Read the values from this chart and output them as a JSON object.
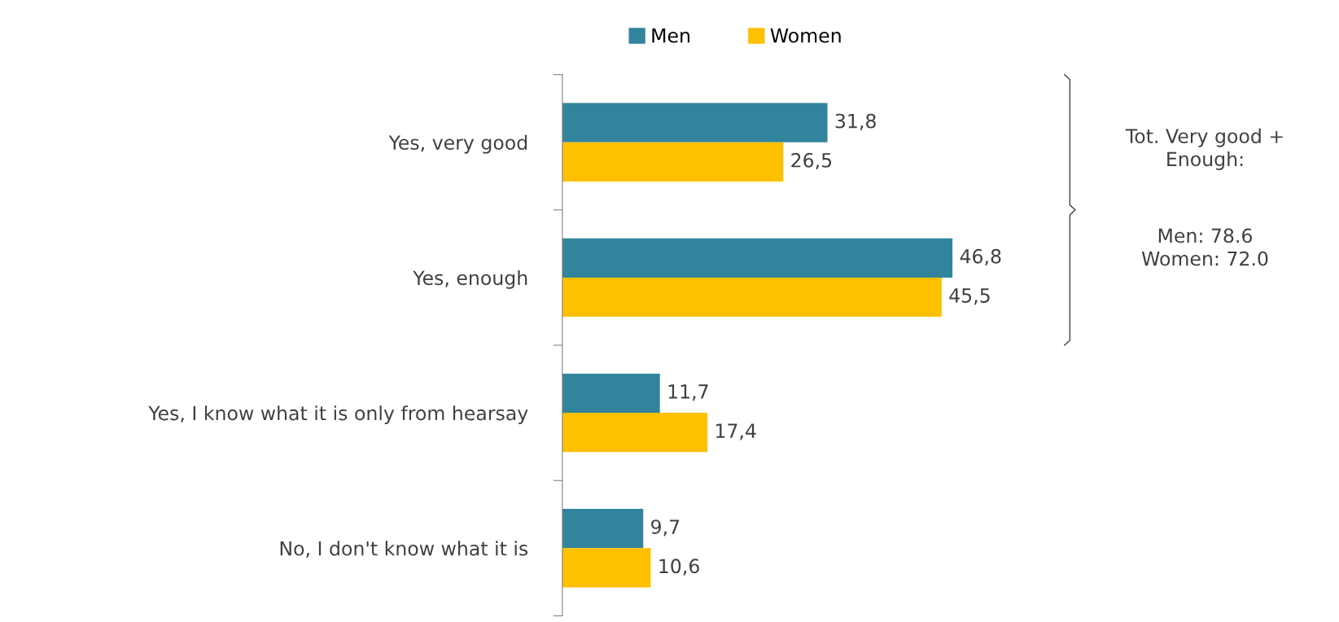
{
  "chart_data": {
    "type": "bar",
    "orientation": "horizontal",
    "categories": [
      "Yes, very good",
      "Yes, enough",
      "Yes, I know what it is only from hearsay",
      "No, I don't know what it is"
    ],
    "series": [
      {
        "name": "Men",
        "color": "#31849b",
        "values": [
          31.8,
          46.8,
          11.7,
          9.7
        ],
        "value_labels": [
          "31,8",
          "46,8",
          "11,7",
          "9,7"
        ]
      },
      {
        "name": "Women",
        "color": "#ffc000",
        "values": [
          26.5,
          45.5,
          17.4,
          10.6
        ],
        "value_labels": [
          "26,5",
          "45,5",
          "17,4",
          "10,6"
        ]
      }
    ],
    "annotations": [
      "Tot. Very good +\nEnough:",
      "Men: 78.6\nWomen: 72.0"
    ],
    "legend": "top",
    "grid": false
  }
}
